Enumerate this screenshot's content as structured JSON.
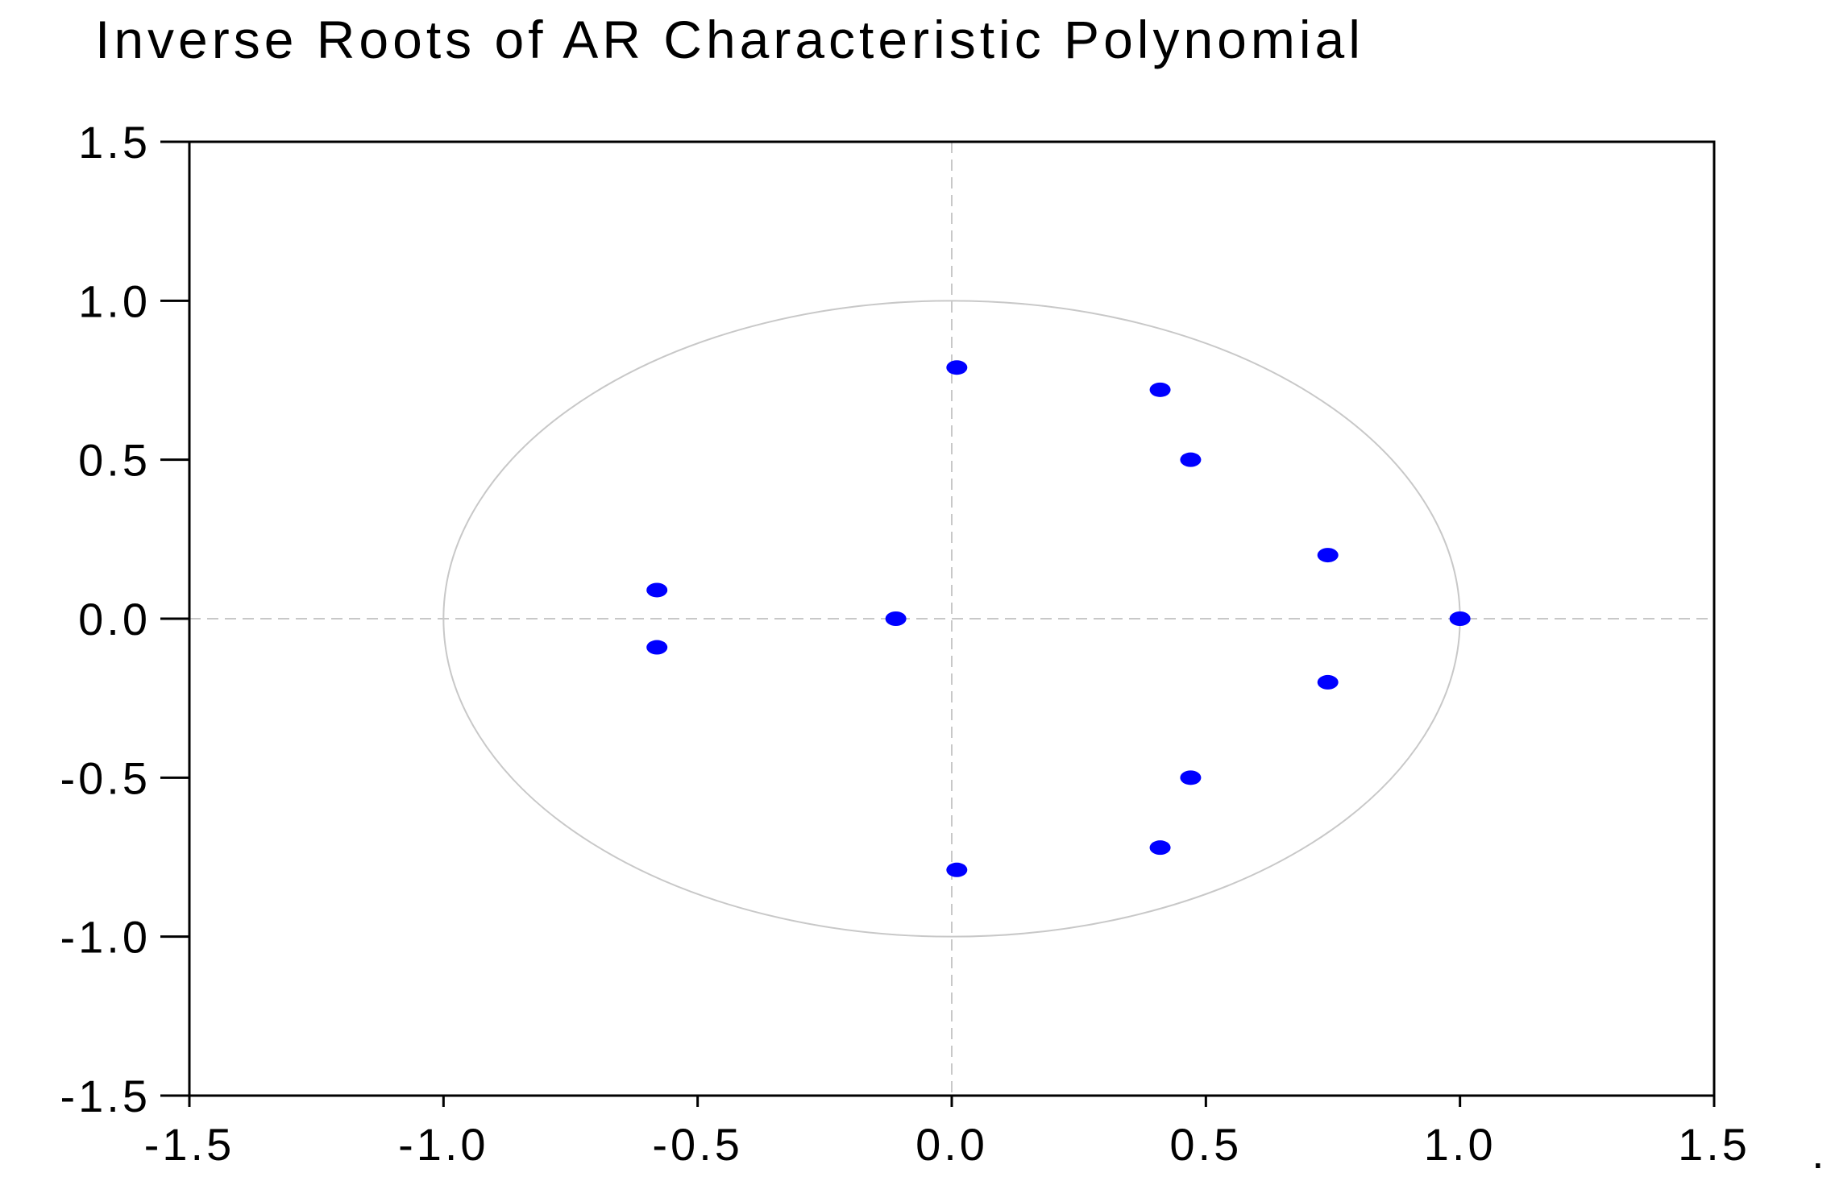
{
  "chart_data": {
    "type": "scatter",
    "title": "Inverse Roots of AR Characteristic Polynomial",
    "xlabel": "",
    "ylabel": "",
    "xlim": [
      -1.5,
      1.5
    ],
    "ylim": [
      -1.5,
      1.5
    ],
    "x_ticks": [
      -1.5,
      -1.0,
      -0.5,
      0.0,
      0.5,
      1.0,
      1.5
    ],
    "y_ticks": [
      -1.5,
      -1.0,
      -0.5,
      0.0,
      0.5,
      1.0,
      1.5
    ],
    "x_tick_labels": [
      "-1.5",
      "-1.0",
      "-0.5",
      "0.0",
      "0.5",
      "1.0",
      "1.5"
    ],
    "y_tick_labels": [
      "-1.5",
      "-1.0",
      "-0.5",
      "0.0",
      "0.5",
      "1.0",
      "1.5"
    ],
    "grid": false,
    "reference_lines": [
      {
        "axis": "x",
        "value": 0
      },
      {
        "axis": "y",
        "value": 0
      }
    ],
    "unit_circle": {
      "radius": 1.0,
      "color": "#c8c8c8"
    },
    "series": [
      {
        "color": "#0000ff",
        "points": [
          {
            "x": 0.01,
            "y": 0.79
          },
          {
            "x": 0.41,
            "y": 0.72
          },
          {
            "x": 0.47,
            "y": 0.5
          },
          {
            "x": 0.74,
            "y": 0.2
          },
          {
            "x": 1.0,
            "y": 0.0
          },
          {
            "x": 0.74,
            "y": -0.2
          },
          {
            "x": 0.47,
            "y": -0.5
          },
          {
            "x": 0.41,
            "y": -0.72
          },
          {
            "x": 0.01,
            "y": -0.79
          },
          {
            "x": -0.11,
            "y": 0.0
          },
          {
            "x": -0.58,
            "y": 0.09
          },
          {
            "x": -0.58,
            "y": -0.09
          }
        ]
      }
    ],
    "footnote_mark": "."
  },
  "colors": {
    "background": "#ffffff",
    "axes": "#000000",
    "reference_lines": "#c8c8c8",
    "points": "#0000ff"
  }
}
